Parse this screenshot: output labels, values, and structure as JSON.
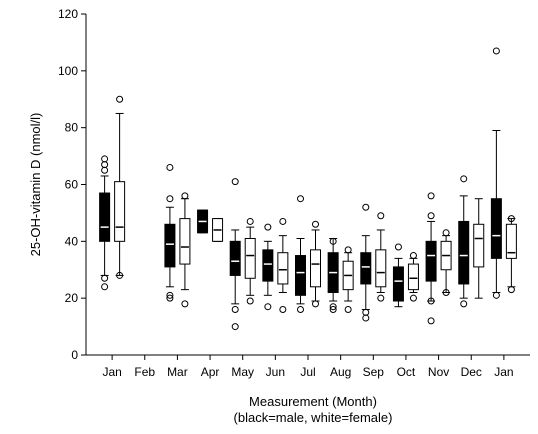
{
  "chart_data": {
    "type": "box",
    "title": "",
    "xlabel_line1": "Measurement (Month)",
    "xlabel_line2": "(black=male, white=female)",
    "ylabel": "25-OH-vitamin D (nmol/l)",
    "ylim": [
      0,
      120
    ],
    "yticks": [
      "0",
      "20",
      "40",
      "60",
      "80",
      "100",
      "120"
    ],
    "grid": false,
    "legend": "none",
    "categories": [
      "Jan",
      "Feb",
      "Mar",
      "Apr",
      "May",
      "Jun",
      "Jul",
      "Aug",
      "Sep",
      "Oct",
      "Nov",
      "Dec",
      "Jan"
    ],
    "series": [
      {
        "color": "#000000",
        "boxes": [
          {
            "cat": 0,
            "whisker_low": 28,
            "q1": 40,
            "median": 45,
            "q3": 57,
            "whisker_high": 63,
            "outliers": [
              24,
              27,
              65,
              67,
              69
            ]
          },
          {
            "cat": 2,
            "whisker_low": 24,
            "q1": 31,
            "median": 39,
            "q3": 46,
            "whisker_high": 52,
            "outliers": [
              20,
              21,
              55,
              66
            ]
          },
          {
            "cat": 3,
            "whisker_low": 43,
            "q1": 43,
            "median": 47,
            "q3": 51,
            "whisker_high": 51,
            "outliers": []
          },
          {
            "cat": 4,
            "whisker_low": 18,
            "q1": 28,
            "median": 33,
            "q3": 40,
            "whisker_high": 44,
            "outliers": [
              10,
              16,
              61
            ]
          },
          {
            "cat": 5,
            "whisker_low": 21,
            "q1": 26,
            "median": 32,
            "q3": 37,
            "whisker_high": 40,
            "outliers": [
              17,
              45
            ]
          },
          {
            "cat": 6,
            "whisker_low": 18,
            "q1": 21,
            "median": 29,
            "q3": 35,
            "whisker_high": 41,
            "outliers": [
              16,
              55
            ]
          },
          {
            "cat": 7,
            "whisker_low": 19,
            "q1": 22,
            "median": 29,
            "q3": 36,
            "whisker_high": 41,
            "outliers": [
              16,
              17,
              40
            ]
          },
          {
            "cat": 8,
            "whisker_low": 16,
            "q1": 25,
            "median": 31,
            "q3": 36,
            "whisker_high": 42,
            "outliers": [
              13,
              15,
              52
            ]
          },
          {
            "cat": 9,
            "whisker_low": 17,
            "q1": 19,
            "median": 26,
            "q3": 31,
            "whisker_high": 34,
            "outliers": [
              38
            ]
          },
          {
            "cat": 10,
            "whisker_low": 19,
            "q1": 26,
            "median": 35,
            "q3": 40,
            "whisker_high": 47,
            "outliers": [
              12,
              19,
              49,
              56
            ]
          },
          {
            "cat": 11,
            "whisker_low": 20,
            "q1": 25,
            "median": 35,
            "q3": 47,
            "whisker_high": 56,
            "outliers": [
              18,
              62
            ]
          },
          {
            "cat": 12,
            "whisker_low": 22,
            "q1": 34,
            "median": 42,
            "q3": 55,
            "whisker_high": 79,
            "outliers": [
              21,
              107
            ]
          }
        ]
      },
      {
        "color": "#ffffff",
        "boxes": [
          {
            "cat": 0,
            "whisker_low": 28,
            "q1": 40,
            "median": 45,
            "q3": 61,
            "whisker_high": 85,
            "outliers": [
              28,
              90
            ]
          },
          {
            "cat": 2,
            "whisker_low": 23,
            "q1": 32,
            "median": 38,
            "q3": 48,
            "whisker_high": 55,
            "outliers": [
              18,
              56
            ]
          },
          {
            "cat": 3,
            "whisker_low": 40,
            "q1": 40,
            "median": 44,
            "q3": 48,
            "whisker_high": 48,
            "outliers": []
          },
          {
            "cat": 4,
            "whisker_low": 21,
            "q1": 27,
            "median": 35,
            "q3": 41,
            "whisker_high": 45,
            "outliers": [
              19,
              47
            ]
          },
          {
            "cat": 5,
            "whisker_low": 22,
            "q1": 25,
            "median": 30,
            "q3": 36,
            "whisker_high": 42,
            "outliers": [
              16,
              47
            ]
          },
          {
            "cat": 6,
            "whisker_low": 19,
            "q1": 24,
            "median": 32,
            "q3": 37,
            "whisker_high": 44,
            "outliers": [
              18,
              46
            ]
          },
          {
            "cat": 7,
            "whisker_low": 19,
            "q1": 23,
            "median": 28,
            "q3": 33,
            "whisker_high": 36,
            "outliers": [
              16,
              37
            ]
          },
          {
            "cat": 8,
            "whisker_low": 22,
            "q1": 24,
            "median": 29,
            "q3": 37,
            "whisker_high": 44,
            "outliers": [
              20,
              49
            ]
          },
          {
            "cat": 9,
            "whisker_low": 22,
            "q1": 23,
            "median": 27,
            "q3": 32,
            "whisker_high": 34,
            "outliers": [
              20,
              35
            ]
          },
          {
            "cat": 10,
            "whisker_low": 22,
            "q1": 30,
            "median": 35,
            "q3": 40,
            "whisker_high": 42,
            "outliers": [
              22,
              43
            ]
          },
          {
            "cat": 11,
            "whisker_low": 20,
            "q1": 31,
            "median": 41,
            "q3": 46,
            "whisker_high": 55,
            "outliers": []
          },
          {
            "cat": 12,
            "whisker_low": 24,
            "q1": 34,
            "median": 36,
            "q3": 46,
            "whisker_high": 48,
            "outliers": [
              23,
              48
            ]
          }
        ]
      }
    ]
  }
}
